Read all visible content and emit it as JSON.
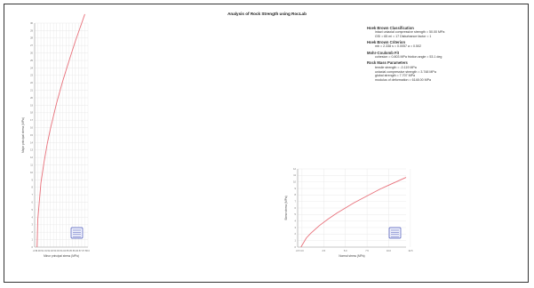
{
  "title": "Analysis of Rock Strength using RocLab",
  "info_sections": [
    {
      "heading": "Hoek Brown Classification",
      "lines": [
        "intact uniaxial compressive strength = 50.00 MPa",
        "GSI = 65    mi = 17    Disturbance factor = 1"
      ]
    },
    {
      "heading": "Hoek Brown Criterion",
      "lines": [
        "mb = 2.338    s = 0.0057    a = 0.502"
      ]
    },
    {
      "heading": "Mohr-Coulomb Fit",
      "lines": [
        "cohesion = 0.803 MPa    friction angle = 53.1 deg"
      ]
    },
    {
      "heading": "Rock Mass Parameters",
      "lines": [
        "tensile strength = -0.119 MPa",
        "uniaxial compressive strength = 3.748 MPa",
        "global strength = 7.707 MPa",
        "modulus of deformation = 6148.00 MPa"
      ]
    }
  ],
  "chart_data": [
    {
      "type": "line",
      "title": "",
      "xlabel": "Minor principal stress (MPa)",
      "ylabel": "Major principal stress (MPa)",
      "xlim": [
        -0.5,
        8
      ],
      "ylim": [
        0,
        30
      ],
      "xticks": [
        "-0.5",
        "0.0",
        "0.5",
        "1.0",
        "1.5",
        "2.0",
        "2.5",
        "3.0",
        "3.5",
        "4.0",
        "4.5",
        "5.0",
        "5.5",
        "6.0",
        "6.5",
        "7.0",
        "7.5",
        "8.0"
      ],
      "yticks": [
        "0",
        "1",
        "2",
        "3",
        "4",
        "5",
        "6",
        "7",
        "8",
        "9",
        "10",
        "11",
        "12",
        "13",
        "14",
        "15",
        "16",
        "17",
        "18",
        "19",
        "20",
        "21",
        "22",
        "23",
        "24",
        "25",
        "26",
        "27",
        "28",
        "29",
        "30"
      ],
      "grid": true,
      "legend": "bottom-right",
      "series": [
        {
          "color": "#e8707a",
          "x": [
            -0.12,
            0.0,
            0.5,
            1.0,
            1.5,
            2.0,
            3.0,
            4.0,
            5.0,
            6.0,
            7.0,
            7.5
          ],
          "y": [
            0.0,
            3.7,
            8.6,
            11.4,
            13.8,
            15.8,
            19.3,
            22.3,
            25.0,
            27.6,
            30.0,
            31.2
          ]
        }
      ]
    },
    {
      "type": "line",
      "title": "",
      "xlabel": "Normal stress (MPa)",
      "ylabel": "Shear stress (MPa)",
      "xlim": [
        -0.5,
        12
      ],
      "ylim": [
        0,
        12
      ],
      "xticks": [
        "-0.5",
        "0.0",
        "2.5",
        "5.0",
        "7.5",
        "10.0",
        "12.5"
      ],
      "yticks": [
        "0",
        "1",
        "2",
        "3",
        "4",
        "5",
        "6",
        "7",
        "8",
        "9",
        "10",
        "11",
        "12"
      ],
      "grid": true,
      "legend": "bottom-right",
      "series": [
        {
          "color": "#e8707a",
          "x": [
            -0.12,
            0.5,
            1.0,
            2.0,
            3.0,
            4.0,
            5.0,
            6.0,
            7.0,
            8.0,
            9.0,
            10.0,
            11.0,
            12.0
          ],
          "y": [
            0.0,
            1.4,
            2.1,
            3.3,
            4.3,
            5.2,
            6.0,
            6.8,
            7.5,
            8.2,
            8.9,
            9.5,
            10.1,
            10.7
          ]
        }
      ]
    }
  ]
}
